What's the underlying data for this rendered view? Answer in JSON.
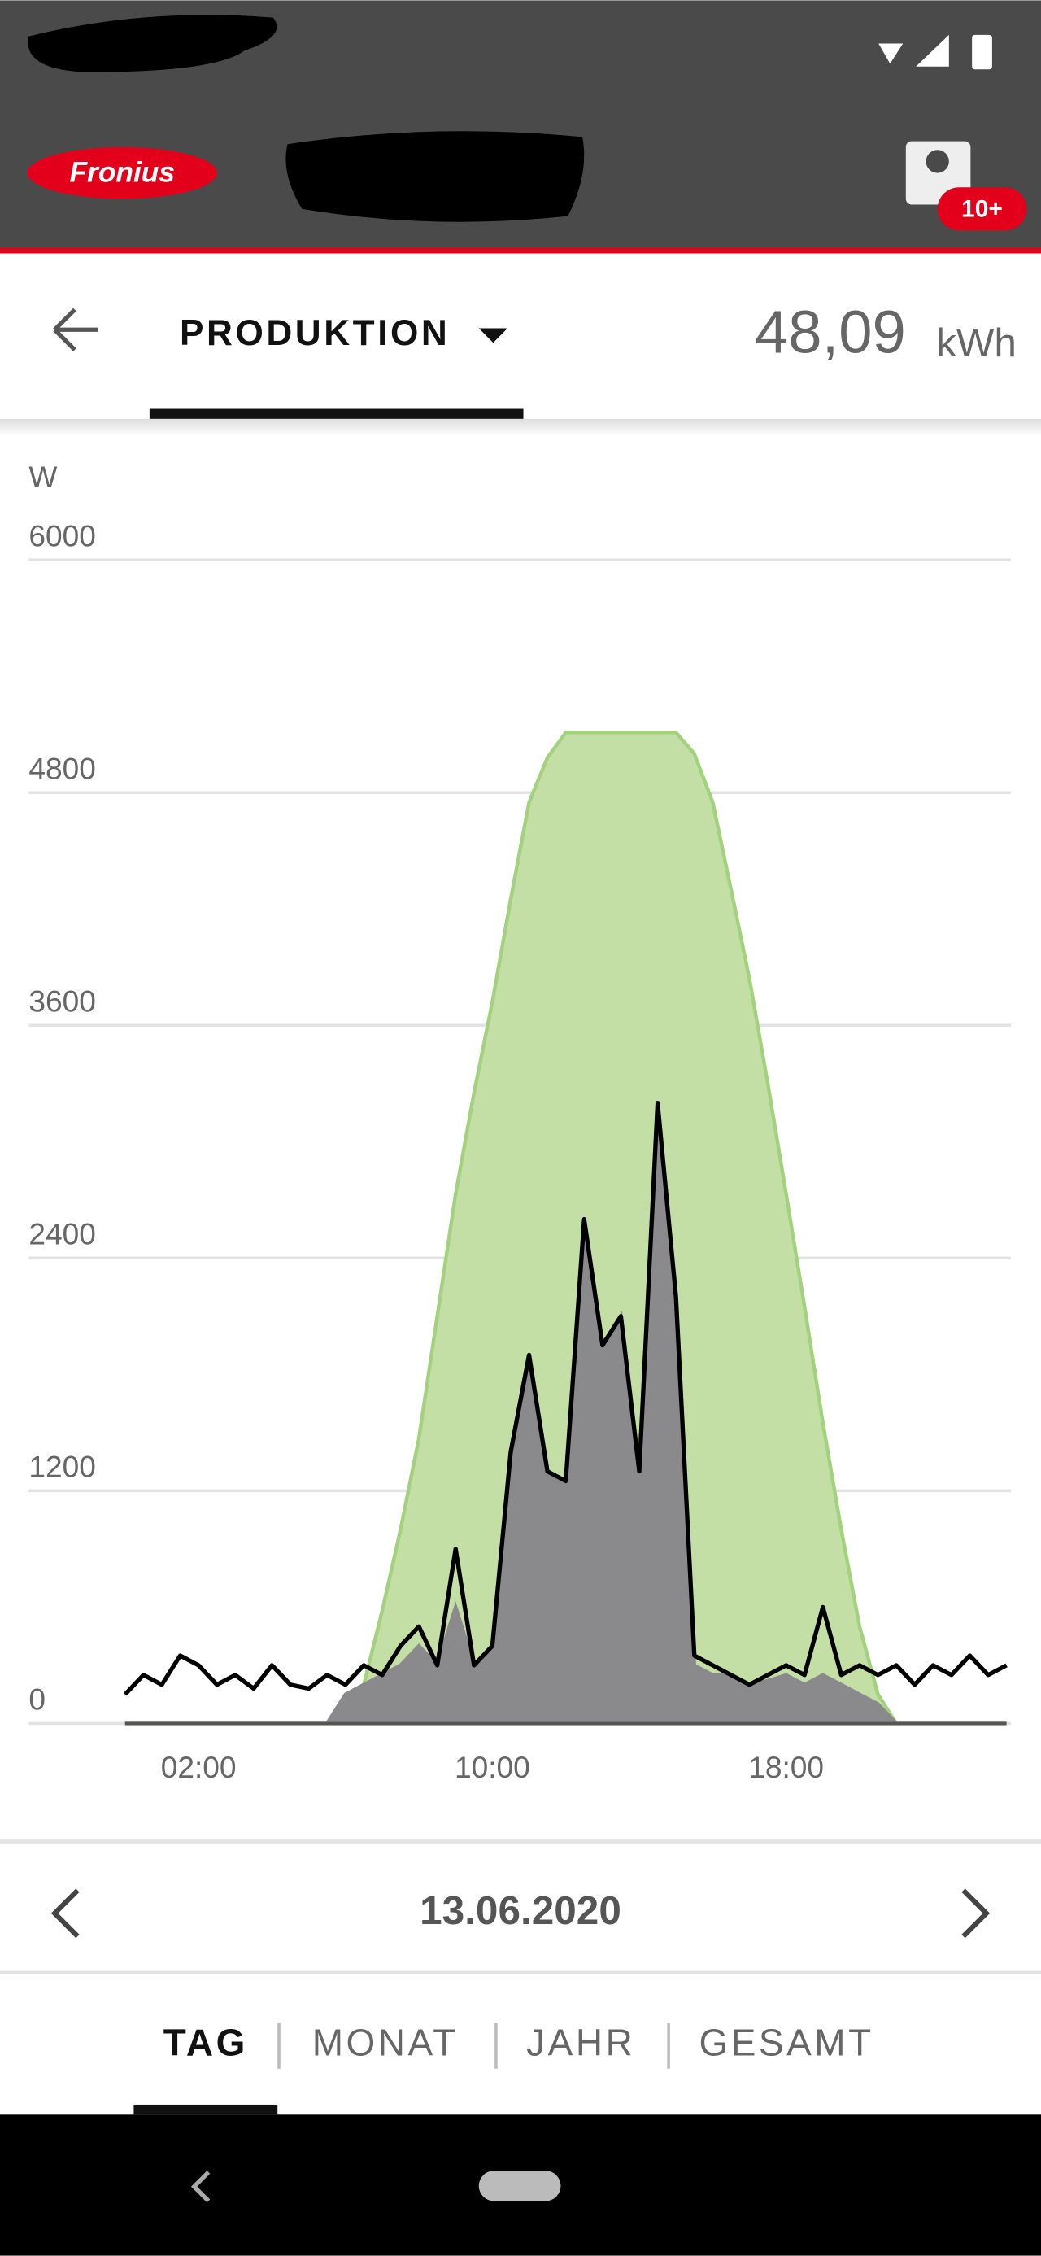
{
  "app_bar": {
    "logo": "Fronius",
    "badge": "10+"
  },
  "header": {
    "view": "PRODUKTION",
    "total": "48,09",
    "unit": "kWh"
  },
  "chart_data": {
    "type": "area",
    "y_label": "W",
    "xlim": [
      0,
      24
    ],
    "xticks": [
      {
        "value": 2,
        "label": "02:00"
      },
      {
        "value": 10,
        "label": "10:00"
      },
      {
        "value": 18,
        "label": "18:00"
      }
    ],
    "ylim": [
      0,
      6000
    ],
    "yticks": [
      0,
      1200,
      2400,
      3600,
      4800,
      6000
    ],
    "grid": true,
    "x": [
      0,
      0.5,
      1,
      1.5,
      2,
      2.5,
      3,
      3.5,
      4,
      4.5,
      5,
      5.5,
      6,
      6.5,
      7,
      7.5,
      8,
      8.5,
      9,
      9.5,
      10,
      10.5,
      11,
      11.5,
      12,
      12.5,
      13,
      13.5,
      14,
      14.5,
      15,
      15.5,
      16,
      16.5,
      17,
      17.5,
      18,
      18.5,
      19,
      19.5,
      20,
      20.5,
      21,
      21.5,
      22,
      22.5,
      23,
      23.5,
      24
    ],
    "series": [
      {
        "type": "area",
        "color": "#c3dfa5",
        "stroke": "#a3d27e",
        "values": [
          0,
          0,
          0,
          0,
          0,
          0,
          0,
          0,
          0,
          0,
          0,
          0,
          0,
          200,
          580,
          1000,
          1470,
          2100,
          2730,
          3250,
          3720,
          4250,
          4750,
          4980,
          5110,
          5110,
          5110,
          5110,
          5110,
          5110,
          5110,
          5000,
          4750,
          4300,
          3840,
          3300,
          2730,
          2150,
          1550,
          1000,
          500,
          150,
          0,
          0,
          0,
          0,
          0,
          0,
          0
        ]
      },
      {
        "type": "area",
        "color": "#8a8a8c",
        "stroke": "#8a8a8c",
        "values": [
          0,
          0,
          0,
          0,
          0,
          0,
          0,
          0,
          0,
          0,
          0,
          0,
          150,
          200,
          250,
          300,
          400,
          300,
          600,
          300,
          400,
          1400,
          1900,
          1300,
          1250,
          2600,
          1950,
          2100,
          1300,
          3200,
          2200,
          300,
          250,
          250,
          200,
          220,
          250,
          200,
          250,
          200,
          150,
          100,
          0,
          0,
          0,
          0,
          0,
          0,
          0
        ]
      },
      {
        "type": "line",
        "color": "#000000",
        "values": [
          150,
          250,
          200,
          350,
          300,
          200,
          250,
          180,
          300,
          200,
          180,
          250,
          200,
          300,
          250,
          400,
          500,
          300,
          900,
          300,
          400,
          1400,
          1900,
          1300,
          1250,
          2600,
          1950,
          2100,
          1300,
          3200,
          2200,
          350,
          300,
          250,
          200,
          250,
          300,
          250,
          600,
          250,
          300,
          250,
          300,
          200,
          300,
          250,
          350,
          250,
          300
        ]
      }
    ]
  },
  "date_nav": {
    "date": "13.06.2020"
  },
  "period_tabs": [
    "TAG",
    "MONAT",
    "JAHR",
    "GESAMT"
  ]
}
